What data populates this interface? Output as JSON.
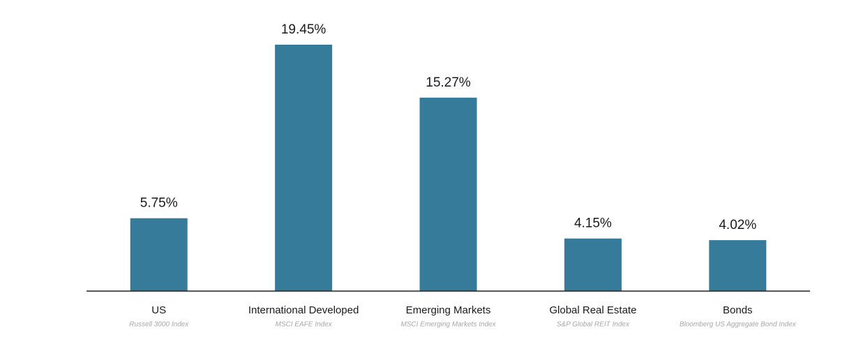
{
  "chart_data": {
    "type": "bar",
    "categories": [
      "US",
      "International Developed",
      "Emerging Markets",
      "Global Real Estate",
      "Bonds"
    ],
    "category_notes": [
      "Russell 3000 Index",
      "MSCI EAFE Index",
      "MSCI Emerging Markets Index",
      "S&P Global REIT Index",
      "Bloomberg US Aggregate Bond Index"
    ],
    "values": [
      5.75,
      19.45,
      15.27,
      4.15,
      4.02
    ],
    "value_labels": [
      "5.75%",
      "19.45%",
      "15.27%",
      "4.15%",
      "4.02%"
    ],
    "color": "#367b9a"
  }
}
